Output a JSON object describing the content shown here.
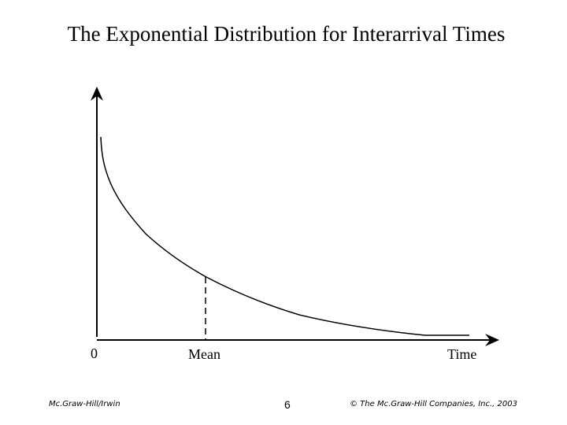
{
  "title": "The Exponential Distribution for Interarrival Times",
  "diagram": {
    "origin_label": "0",
    "mean_label": "Mean",
    "time_label": "Time"
  },
  "footer": {
    "left": "Mc.Graw-Hill/Irwin",
    "page_number": "6",
    "right": "© The Mc.Graw-Hill Companies, Inc., 2003"
  },
  "colors": {
    "ink": "#000000",
    "background": "#ffffff"
  }
}
